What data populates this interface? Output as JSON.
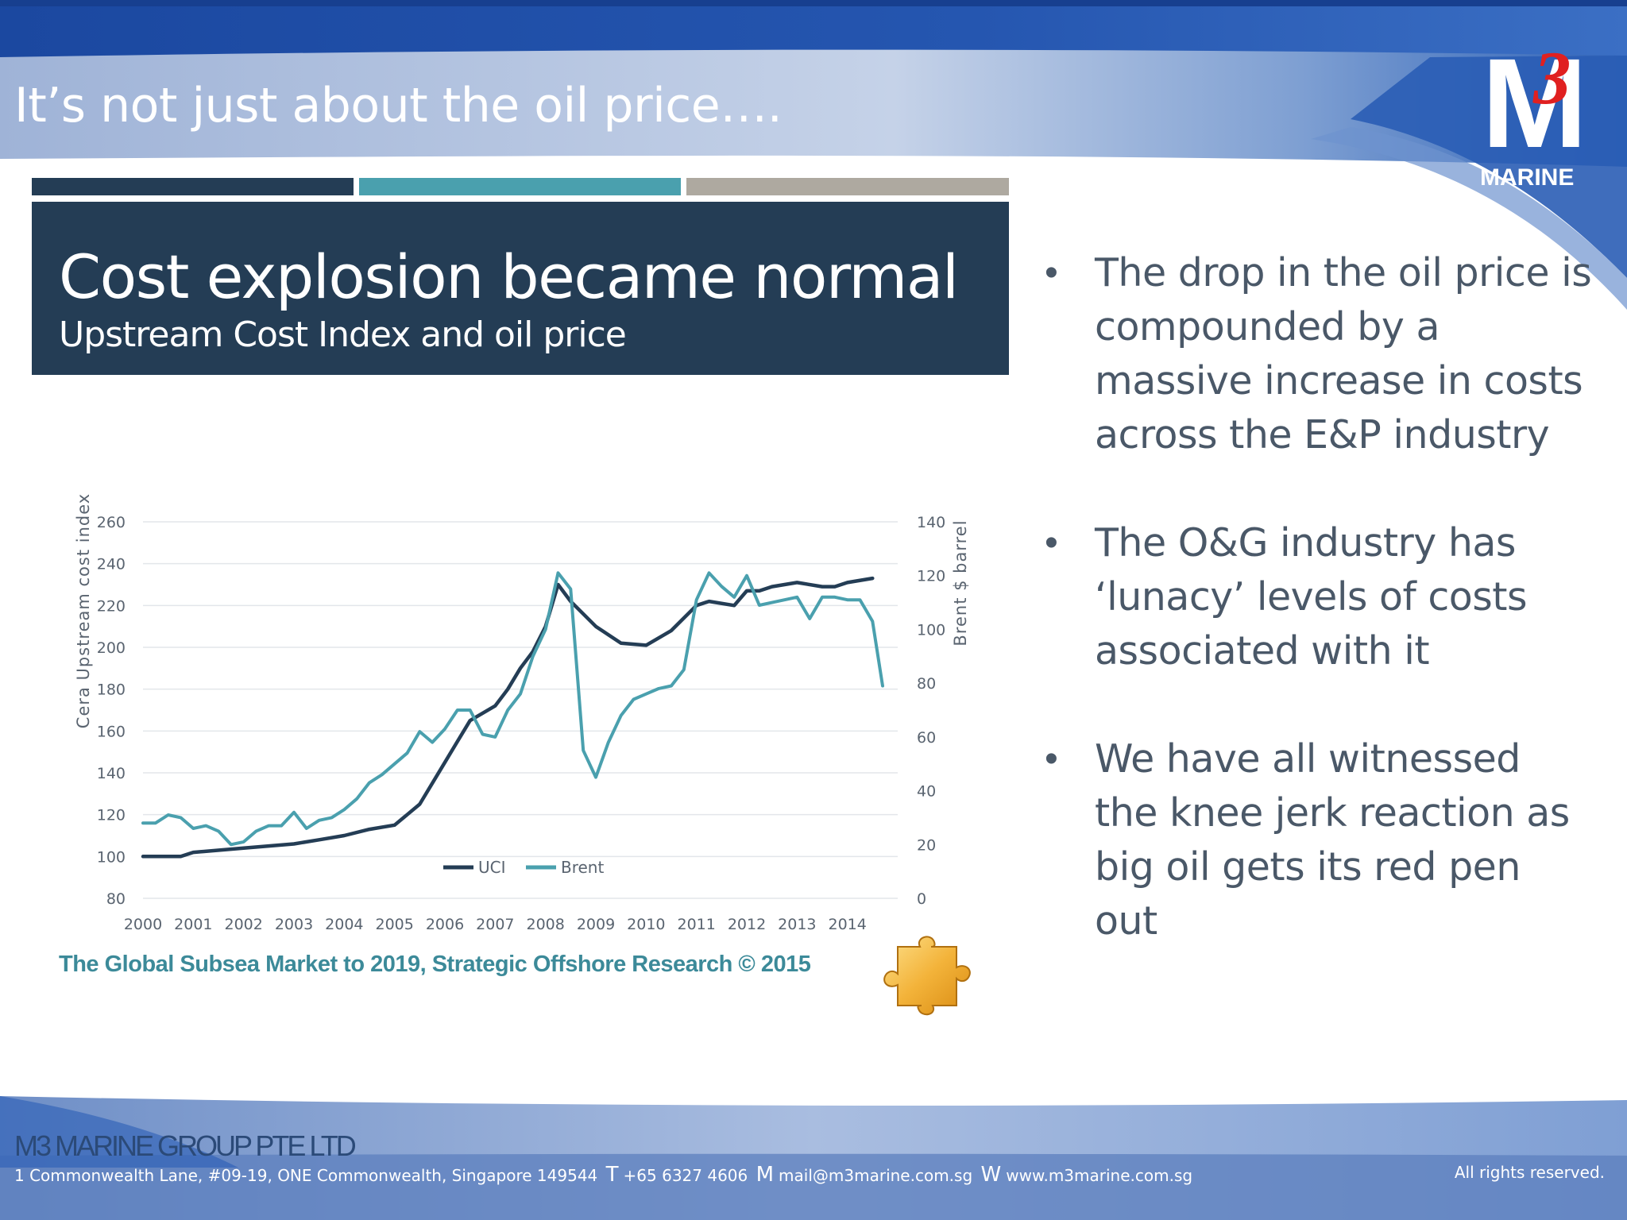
{
  "slide": {
    "title": "It’s not just about the oil price…."
  },
  "logo": {
    "main": "M",
    "superscript": "3",
    "label": "MARINE"
  },
  "chart_header": {
    "title": "Cost explosion became normal",
    "subtitle": "Upstream Cost Index and oil price"
  },
  "chart_data": {
    "type": "line",
    "title": "Cost explosion became normal",
    "subtitle": "Upstream Cost Index and oil price",
    "x_ticks": [
      "2000",
      "2001",
      "2002",
      "2003",
      "2004",
      "2005",
      "2006",
      "2007",
      "2008",
      "2009",
      "2010",
      "2011",
      "2012",
      "2013",
      "2014"
    ],
    "xlim": [
      2000,
      2015
    ],
    "ylabel_left": "Cera Upstream cost index",
    "ylabel_right": "Brent $ barrel",
    "ylim_left": [
      80,
      260
    ],
    "ylim_right": [
      0,
      140
    ],
    "y_ticks_left": [
      80,
      100,
      120,
      140,
      160,
      180,
      200,
      220,
      240,
      260
    ],
    "y_ticks_right": [
      0,
      20,
      40,
      60,
      80,
      100,
      120,
      140
    ],
    "grid": true,
    "legend": {
      "position": "bottom-center",
      "entries": [
        "UCI",
        "Brent"
      ]
    },
    "series": [
      {
        "name": "UCI",
        "axis": "left",
        "color": "#243d55",
        "x": [
          2000,
          2000.5,
          2000.75,
          2001,
          2002,
          2003,
          2003.5,
          2004,
          2004.5,
          2005,
          2005.25,
          2005.5,
          2006,
          2006.25,
          2006.5,
          2007,
          2007.25,
          2007.5,
          2007.75,
          2008,
          2008.25,
          2008.5,
          2009,
          2009.5,
          2010,
          2010.5,
          2011,
          2011.25,
          2011.75,
          2012,
          2012.25,
          2012.5,
          2013,
          2013.5,
          2013.75,
          2014,
          2014.5
        ],
        "values": [
          100,
          100,
          100,
          102,
          104,
          106,
          108,
          110,
          113,
          115,
          120,
          125,
          145,
          155,
          165,
          172,
          180,
          190,
          198,
          210,
          230,
          222,
          210,
          202,
          201,
          208,
          220,
          222,
          220,
          227,
          227,
          229,
          231,
          229,
          229,
          231,
          233
        ]
      },
      {
        "name": "Brent",
        "axis": "right",
        "color": "#4aa0ae",
        "x": [
          2000,
          2000.25,
          2000.5,
          2000.75,
          2001,
          2001.25,
          2001.5,
          2001.75,
          2002,
          2002.25,
          2002.5,
          2002.75,
          2003,
          2003.25,
          2003.5,
          2003.75,
          2004,
          2004.25,
          2004.5,
          2004.75,
          2005,
          2005.25,
          2005.5,
          2005.75,
          2006,
          2006.25,
          2006.5,
          2006.75,
          2007,
          2007.25,
          2007.5,
          2007.75,
          2008,
          2008.25,
          2008.5,
          2008.75,
          2009,
          2009.25,
          2009.5,
          2009.75,
          2010,
          2010.25,
          2010.5,
          2010.75,
          2011,
          2011.25,
          2011.5,
          2011.75,
          2012,
          2012.25,
          2012.5,
          2012.75,
          2013,
          2013.25,
          2013.5,
          2013.75,
          2014,
          2014.25,
          2014.5,
          2014.7
        ],
        "values": [
          28,
          28,
          31,
          30,
          26,
          27,
          25,
          20,
          21,
          25,
          27,
          27,
          32,
          26,
          29,
          30,
          33,
          37,
          43,
          46,
          50,
          54,
          62,
          58,
          63,
          70,
          70,
          61,
          60,
          70,
          76,
          90,
          100,
          121,
          115,
          55,
          45,
          58,
          68,
          74,
          76,
          78,
          79,
          85,
          111,
          121,
          116,
          112,
          120,
          109,
          110,
          111,
          112,
          104,
          112,
          112,
          111,
          111,
          103,
          79
        ]
      }
    ]
  },
  "source": "The Global Subsea Market to 2019, Strategic Offshore Research © 2015",
  "bullets": [
    "The drop in the oil price is compounded by a massive increase in costs across the E&P industry",
    "The O&G industry has ‘lunacy’ levels of costs associated with it",
    "We have all witnessed the knee jerk reaction as big oil gets its red pen out"
  ],
  "footer": {
    "company": "M3 MARINE GROUP PTE LTD",
    "address": "1 Commonwealth Lane, #09-19, ONE Commonwealth, Singapore 149544",
    "phone_label": "T",
    "phone": "+65 6327 4606",
    "email_label": "M",
    "email": "mail@m3marine.com.sg",
    "web_label": "W",
    "web": "www.m3marine.com.sg",
    "rights": "All rights reserved."
  },
  "colors": {
    "navy": "#243d55",
    "teal": "#4aa0ae",
    "grey": "#aea9a0",
    "brand_blue": "#1e4fa6",
    "logo_red": "#e02020",
    "bullet_text": "#4a5868"
  }
}
